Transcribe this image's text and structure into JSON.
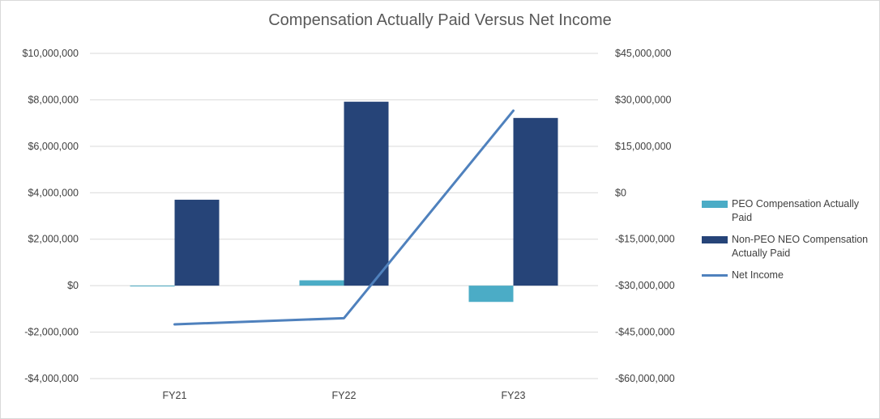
{
  "chart_data": {
    "type": "bar",
    "title": "Compensation Actually Paid Versus Net Income",
    "categories": [
      "FY21",
      "FY22",
      "FY23"
    ],
    "series": [
      {
        "name": "PEO Compensation Actually Paid",
        "type": "bar",
        "axis": "left",
        "color": "#4bacc6",
        "values": [
          0,
          230000,
          -700000
        ]
      },
      {
        "name": "Non-PEO NEO Compensation Actually Paid",
        "type": "bar",
        "axis": "left",
        "color": "#264478",
        "values": [
          3700000,
          7920000,
          7220000
        ]
      },
      {
        "name": "Net Income",
        "type": "line",
        "axis": "right",
        "color": "#4f81bd",
        "values": [
          -42500000,
          -40500000,
          26500000
        ]
      }
    ],
    "y_left": {
      "min": -4000000,
      "max": 10000000,
      "ticks": [
        {
          "value": 10000000,
          "label": "$10,000,000"
        },
        {
          "value": 8000000,
          "label": "$8,000,000"
        },
        {
          "value": 6000000,
          "label": "$6,000,000"
        },
        {
          "value": 4000000,
          "label": "$4,000,000"
        },
        {
          "value": 2000000,
          "label": "$2,000,000"
        },
        {
          "value": 0,
          "label": "$0"
        },
        {
          "value": -2000000,
          "label": "-$2,000,000"
        },
        {
          "value": -4000000,
          "label": "-$4,000,000"
        }
      ]
    },
    "y_right": {
      "min": -60000000,
      "max": 45000000,
      "ticks": [
        {
          "value": 45000000,
          "label": "$45,000,000"
        },
        {
          "value": 30000000,
          "label": "$30,000,000"
        },
        {
          "value": 15000000,
          "label": "$15,000,000"
        },
        {
          "value": 0,
          "label": "$0"
        },
        {
          "value": -15000000,
          "label": "-$15,000,000"
        },
        {
          "value": -30000000,
          "label": "-$30,000,000"
        },
        {
          "value": -45000000,
          "label": "-$45,000,000"
        },
        {
          "value": -60000000,
          "label": "-$60,000,000"
        }
      ]
    },
    "grid": true,
    "legend_position": "right"
  }
}
